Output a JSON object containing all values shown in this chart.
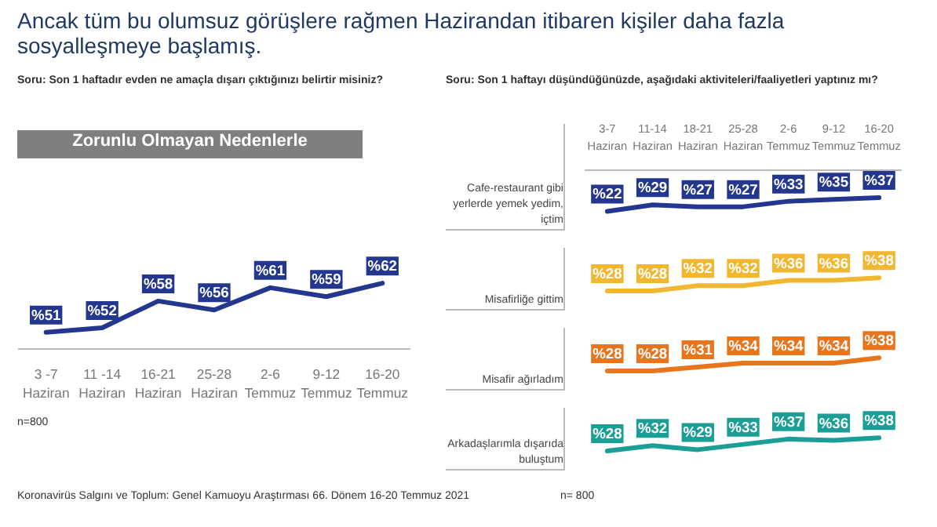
{
  "chart_data": [
    {
      "type": "other",
      "title": "Ancak tüm bu olumsuz görüşlere rağmen Hazirandan itibaren kişiler daha fazla sosyalleşmeye başlamış.",
      "annotations": [
        "Koronavirüs Salgını ve Toplum: Genel Kamuoyu Araştırması 66. Dönem 16-20 Temmuz 2021",
        "n= 800"
      ]
    },
    {
      "type": "line",
      "subtitle": "Soru: Son 1 haftadır evden ne amaçla dışarı çıktığınızı belirtir misiniz?",
      "title": "Zorunlu Olmayan Nedenlerle",
      "categories": [
        "3 -7 Haziran",
        "11 -14 Haziran",
        "16-21 Haziran",
        "25-28 Haziran",
        "2-6 Temmuz",
        "9-12 Temmuz",
        "16-20 Temmuz"
      ],
      "series": [
        {
          "color": "#24378f",
          "values": [
            51,
            52,
            58,
            56,
            61,
            59,
            62
          ],
          "value_labels": [
            "%51",
            "%52",
            "%58",
            "%56",
            "%61",
            "%59",
            "%62"
          ]
        }
      ],
      "tick_labels": "x",
      "annotations": [
        "n=800"
      ]
    },
    {
      "type": "line",
      "subtitle": "Soru: Son 1 haftayı düşündüğünüzde, aşağıdaki aktiviteleri/faaliyetleri yaptınız mı?",
      "ylabel": "Cafe-restaurant gibi yerlerde yemek yedim, içtim",
      "categories": [
        "3-7 Haziran",
        "11-14 Haziran",
        "18-21 Haziran",
        "25-28 Haziran",
        "2-6 Temmuz",
        "9-12 Temmuz",
        "16-20 Temmuz"
      ],
      "tick_labels": "x",
      "series": [
        {
          "color": "#24378f",
          "values": [
            22,
            29,
            27,
            27,
            33,
            35,
            37
          ],
          "value_labels": [
            "%22",
            "%29",
            "%27",
            "%27",
            "%33",
            "%35",
            "%37"
          ]
        }
      ]
    },
    {
      "type": "line",
      "ylabel": "Misafirliğe gittim",
      "tick_labels": false,
      "series": [
        {
          "color": "#f2b731",
          "values": [
            28,
            28,
            32,
            32,
            36,
            36,
            38
          ],
          "value_labels": [
            "%28",
            "%28",
            "%32",
            "%32",
            "%36",
            "%36",
            "%38"
          ]
        }
      ]
    },
    {
      "type": "line",
      "ylabel": "Misafir ağırladım",
      "tick_labels": false,
      "series": [
        {
          "color": "#e8741c",
          "values": [
            28,
            28,
            31,
            34,
            34,
            34,
            38
          ],
          "value_labels": [
            "%28",
            "%28",
            "%31",
            "%34",
            "%34",
            "%34",
            "%38"
          ]
        }
      ]
    },
    {
      "type": "line",
      "ylabel": "Arkadaşlarımla dışarıda buluştum",
      "tick_labels": false,
      "series": [
        {
          "color": "#1a9e96",
          "values": [
            28,
            32,
            29,
            33,
            37,
            36,
            38
          ],
          "value_labels": [
            "%28",
            "%32",
            "%29",
            "%33",
            "%37",
            "%36",
            "%38"
          ]
        }
      ]
    }
  ]
}
